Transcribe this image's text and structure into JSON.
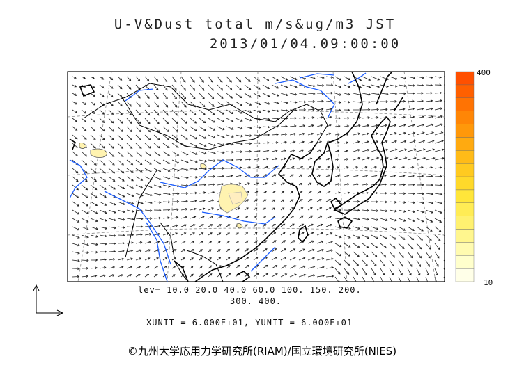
{
  "header": {
    "title_line1": "U-V&Dust total m/s&ug/m3 JST",
    "title_line2": "2013/01/04.09:00:00"
  },
  "legend": {
    "lev_line1": "lev= 10.0 20.0 40.0 60.0 100. 150. 200.",
    "lev_line2": "300. 400.",
    "units": "XUNIT = 6.000E+01, YUNIT = 6.000E+01"
  },
  "colorbar": {
    "max_label": "400",
    "min_label": "10",
    "colors": [
      "#ffffe8",
      "#ffffcc",
      "#fffbb0",
      "#fff68e",
      "#fff170",
      "#ffec55",
      "#ffe63a",
      "#ffd92a",
      "#ffca20",
      "#ffbb18",
      "#ffaa10",
      "#ff980a",
      "#ff8606",
      "#ff7303",
      "#ff6000",
      "#ff5000"
    ]
  },
  "colors": {
    "coast": "#000000",
    "river": "#1a5cff",
    "grid": "#888888",
    "dust_fill": "#fff3b0",
    "arrow": "#222222"
  },
  "footer": {
    "copyright": "©九州大学応用力学研究所(RIAM)/国立環境研究所(NIES)"
  }
}
